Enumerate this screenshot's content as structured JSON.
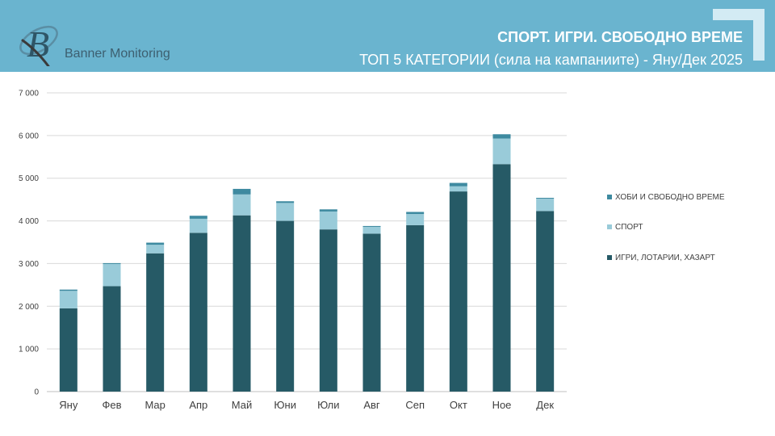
{
  "header": {
    "logo_text": "Banner Monitoring",
    "title": "СПОРТ. ИГРИ. СВОБОДНО ВРЕМЕ",
    "subtitle": "ТОП 5 КАТЕГОРИИ (сила на кампаниите) - Яну/Дек 2025"
  },
  "colors": {
    "header_bg": "#6ab4cf",
    "series_igri": "#265a66",
    "series_sport": "#99cbd9",
    "series_hobi": "#3e8aa0"
  },
  "chart_data": {
    "type": "bar",
    "stacked": true,
    "categories": [
      "Яну",
      "Фев",
      "Мар",
      "Апр",
      "Май",
      "Юни",
      "Юли",
      "Авг",
      "Сеп",
      "Окт",
      "Ное",
      "Дек"
    ],
    "series": [
      {
        "name": "ИГРИ, ЛОТАРИИ, ХАЗАРТ",
        "values": [
          1950,
          2470,
          3240,
          3720,
          4130,
          4000,
          3800,
          3700,
          3900,
          4690,
          5330,
          4230
        ]
      },
      {
        "name": "СПОРТ",
        "values": [
          410,
          520,
          200,
          330,
          490,
          420,
          420,
          160,
          260,
          120,
          600,
          290
        ]
      },
      {
        "name": "ХОБИ И СВОБОДНО ВРЕМЕ",
        "values": [
          30,
          20,
          50,
          70,
          130,
          40,
          50,
          20,
          50,
          80,
          100,
          20
        ]
      }
    ],
    "yticks": [
      "0",
      "1 000",
      "2 000",
      "3 000",
      "4 000",
      "5 000",
      "6 000",
      "7 000"
    ],
    "ylim": [
      0,
      7000
    ],
    "grid": true,
    "legend_position": "right",
    "xlabel": "",
    "ylabel": ""
  }
}
